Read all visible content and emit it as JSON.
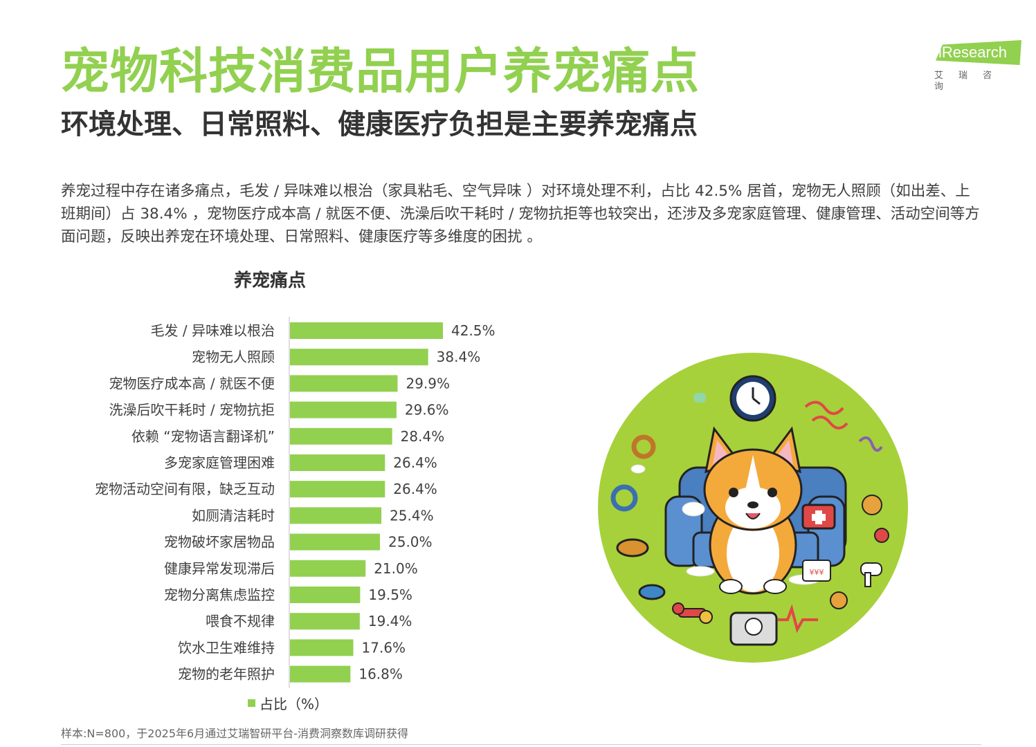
{
  "header": {
    "title": "宠物科技消费品用户养宠痛点",
    "subtitle": "环境处理、日常照料、健康医疗负担是主要养宠痛点"
  },
  "logo": {
    "wordmark": "iResearch",
    "sub": "艾瑞咨询"
  },
  "description": "养宠过程中存在诸多痛点，毛发 / 异味难以根治（家具粘毛、空气异味 ）对环境处理不利，占比 42.5% 居首，宠物无人照顾（如出差、上班期间）占 38.4% ，宠物医疗成本高 / 就医不便、洗澡后吹干耗时 / 宠物抗拒等也较突出，还涉及多宠家庭管理、健康管理、活动空间等方面问题，反映出养宠在环境处理、日常照料、健康医疗等多维度的困扰 。",
  "chart_data": {
    "type": "bar",
    "orientation": "horizontal",
    "title": "养宠痛点",
    "categories": [
      "毛发 / 异味难以根治",
      "宠物无人照顾",
      "宠物医疗成本高 / 就医不便",
      "洗澡后吹干耗时 / 宠物抗拒",
      "依赖 “宠物语言翻译机”",
      "多宠家庭管理困难",
      "宠物活动空间有限，缺乏互动",
      "如厕清洁耗时",
      "宠物破坏家居物品",
      "健康异常发现滞后",
      "宠物分离焦虑监控",
      "喂食不规律",
      "饮水卫生难维持",
      "宠物的老年照护"
    ],
    "series": [
      {
        "name": "占比（%）",
        "values": [
          42.5,
          38.4,
          29.9,
          29.6,
          28.4,
          26.4,
          26.4,
          25.4,
          25.0,
          21.0,
          19.5,
          19.4,
          17.6,
          16.8
        ],
        "labels": [
          "42.5%",
          "38.4%",
          "29.9%",
          "29.6%",
          "28.4%",
          "26.4%",
          "26.4%",
          "25.4%",
          "25.0%",
          "21.0%",
          "19.5%",
          "19.4%",
          "17.6%",
          "16.8%"
        ]
      }
    ],
    "color": "#92d050",
    "legend_position": "bottom",
    "grid": false
  },
  "legend": {
    "label": "占比（%）"
  },
  "footnote": "样本:N=800，于2025年6月通过艾瑞智研平台-消费洞察数库调研获得",
  "illustration": {
    "name": "corgi-pet-illustration",
    "clock_text": "",
    "price_tag": "¥¥¥"
  },
  "colors": {
    "accent": "#92d050",
    "text": "#333333",
    "circle": "#a6d13a"
  }
}
